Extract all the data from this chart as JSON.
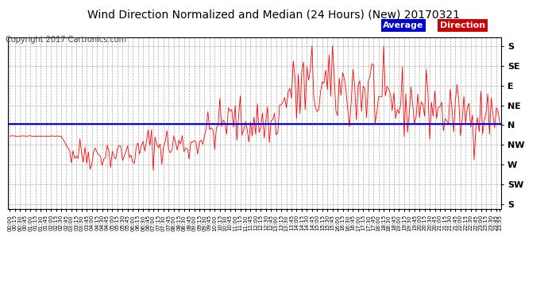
{
  "title": "Wind Direction Normalized and Median (24 Hours) (New) 20170321",
  "copyright_text": "Copyright 2017 Cartronics.com",
  "background_color": "#ffffff",
  "plot_background": "#ffffff",
  "grid_color": "#aaaaaa",
  "ytick_labels": [
    "S",
    "SE",
    "E",
    "NE",
    "N",
    "NW",
    "W",
    "SW",
    "S"
  ],
  "ytick_values": [
    360,
    315,
    270,
    225,
    180,
    135,
    90,
    45,
    0
  ],
  "ylim": [
    -10,
    380
  ],
  "average_direction_value": 182,
  "line_color": "#ff0000",
  "avg_line_color": "#0000ff",
  "figsize": [
    6.9,
    3.75
  ],
  "dpi": 100,
  "title_fontsize": 10,
  "copyright_fontsize": 7,
  "ytick_fontsize": 8,
  "xtick_fontsize": 5
}
